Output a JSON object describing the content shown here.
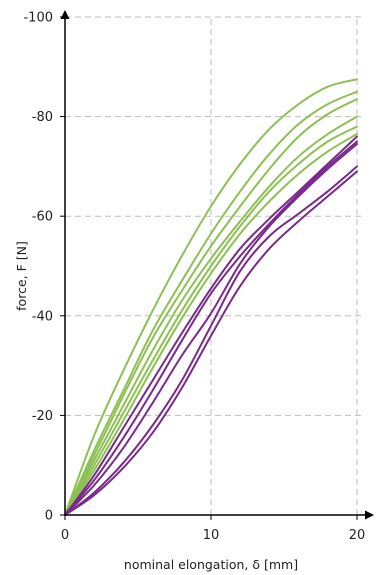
{
  "chart_data": {
    "type": "line",
    "xlabel": "nominal elongation, δ [mm]",
    "ylabel": "force, F [N]",
    "xlim": [
      0,
      20
    ],
    "ylim": [
      0,
      -100
    ],
    "x_ticks": [
      0,
      10,
      20
    ],
    "y_ticks": [
      0,
      -20,
      -40,
      -60,
      -80,
      -100
    ],
    "x_tick_labels": [
      "0",
      "10",
      "20"
    ],
    "y_tick_labels": [
      "0",
      "-20",
      "-40",
      "-60",
      "-80",
      "-100"
    ],
    "grid": true,
    "grid_style": "dashed",
    "legend": "none",
    "colors": {
      "green": "#8cc152",
      "purple": "#7a2a8c",
      "axis": "#000000",
      "grid": "#bdbdbd"
    },
    "series": [
      {
        "color_key": "green",
        "x": [
          0,
          2,
          4,
          6,
          8,
          10,
          12,
          14,
          16,
          18,
          20
        ],
        "y": [
          0,
          -16,
          -29,
          -41,
          -52,
          -62,
          -70.5,
          -77.5,
          -82.5,
          -86,
          -87.5
        ]
      },
      {
        "color_key": "green",
        "x": [
          0,
          2,
          4,
          6,
          8,
          10,
          12,
          14,
          16,
          18,
          20
        ],
        "y": [
          0,
          -13,
          -25,
          -37,
          -47,
          -56.5,
          -65,
          -72.5,
          -78.5,
          -82.5,
          -85
        ]
      },
      {
        "color_key": "green",
        "x": [
          0,
          2,
          4,
          6,
          8,
          10,
          12,
          14,
          16,
          18,
          20
        ],
        "y": [
          0,
          -12,
          -24,
          -35.5,
          -45,
          -54,
          -62,
          -69.5,
          -76,
          -80.5,
          -83.5
        ]
      },
      {
        "color_key": "green",
        "x": [
          0,
          2,
          4,
          6,
          8,
          10,
          12,
          14,
          16,
          18,
          20
        ],
        "y": [
          0,
          -11,
          -22,
          -33,
          -43,
          -51.5,
          -59,
          -66,
          -72,
          -76.5,
          -80
        ]
      },
      {
        "color_key": "green",
        "x": [
          0,
          2,
          4,
          6,
          8,
          10,
          12,
          14,
          16,
          18,
          20
        ],
        "y": [
          0,
          -10,
          -20.5,
          -31,
          -41,
          -50,
          -58,
          -65,
          -70.5,
          -75,
          -78
        ]
      },
      {
        "color_key": "green",
        "x": [
          0,
          2,
          4,
          6,
          8,
          10,
          12,
          14,
          16,
          18,
          20
        ],
        "y": [
          0,
          -9,
          -19,
          -29.5,
          -39.5,
          -48.5,
          -56.5,
          -63,
          -68.5,
          -73,
          -76.5
        ]
      },
      {
        "color_key": "purple",
        "x": [
          0,
          2,
          4,
          6,
          8,
          10,
          12,
          14,
          16,
          18,
          20
        ],
        "y": [
          0,
          -8,
          -17.5,
          -27,
          -36.5,
          -45.5,
          -53.5,
          -59.5,
          -65,
          -70.5,
          -76
        ]
      },
      {
        "color_key": "purple",
        "x": [
          0,
          2,
          4,
          6,
          8,
          10,
          12,
          14,
          16,
          18,
          20
        ],
        "y": [
          0,
          -7,
          -15.5,
          -25,
          -35,
          -44.5,
          -52,
          -58.5,
          -64.5,
          -70,
          -75
        ]
      },
      {
        "color_key": "purple",
        "x": [
          0,
          2,
          4,
          6,
          8,
          10,
          12,
          14,
          16,
          18,
          20
        ],
        "y": [
          0,
          -6,
          -13.5,
          -22.5,
          -32,
          -40.5,
          -50.5,
          -58,
          -64,
          -69.5,
          -74.5
        ]
      },
      {
        "color_key": "purple",
        "x": [
          0,
          2,
          4,
          6,
          8,
          10,
          12,
          14,
          16,
          18,
          20
        ],
        "y": [
          0,
          -4.5,
          -10.5,
          -18,
          -27,
          -38,
          -49,
          -56,
          -60.5,
          -65,
          -70
        ]
      },
      {
        "color_key": "purple",
        "x": [
          0,
          2,
          4,
          6,
          8,
          10,
          12,
          14,
          16,
          18,
          20
        ],
        "y": [
          0,
          -4,
          -9.5,
          -16.5,
          -25.5,
          -36,
          -46,
          -53.5,
          -59,
          -64,
          -69
        ]
      }
    ]
  }
}
